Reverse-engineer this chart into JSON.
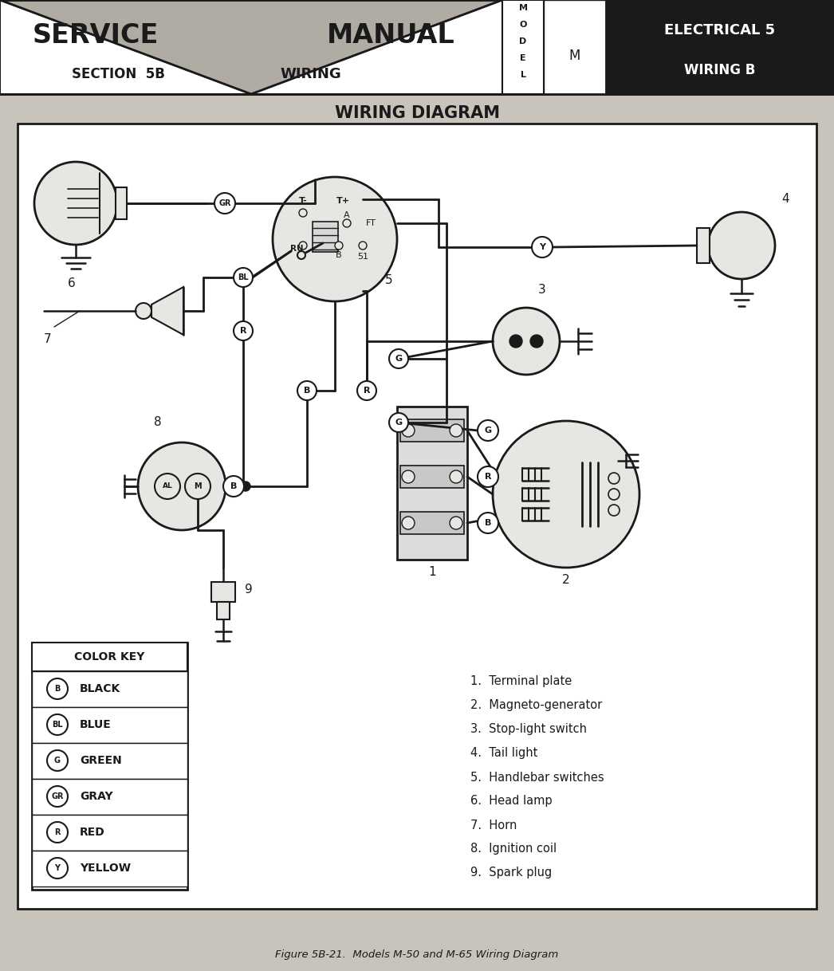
{
  "bg_color": "#c8c4bc",
  "white": "#ffffff",
  "black": "#1a1a1a",
  "light_gray": "#e8e6e2",
  "mid_gray": "#b0aca4",
  "title": "WIRING DIAGRAM",
  "caption": "Figure 5B-21.  Models M-50 and M-65 Wiring Diagram",
  "header_left": "SERVICE",
  "header_center": "MANUAL",
  "header_sub_left": "SECTION  5B",
  "header_sub_center": "WIRING",
  "header_right_top": "ELECTRICAL 5",
  "header_right_bot": "WIRING B",
  "header_model_value": "M",
  "color_key_items": [
    {
      "symbol": "B",
      "label": "BLACK"
    },
    {
      "symbol": "BL",
      "label": "BLUE"
    },
    {
      "symbol": "G",
      "label": "GREEN"
    },
    {
      "symbol": "GR",
      "label": "GRAY"
    },
    {
      "symbol": "R",
      "label": "RED"
    },
    {
      "symbol": "Y",
      "label": "YELLOW"
    }
  ],
  "legend_items": [
    "1.  Terminal plate",
    "2.  Magneto-generator",
    "3.  Stop-light switch",
    "4.  Tail light",
    "5.  Handlebar switches",
    "6.  Head lamp",
    "7.  Horn",
    "8.  Ignition coil",
    "9.  Spark plug"
  ]
}
